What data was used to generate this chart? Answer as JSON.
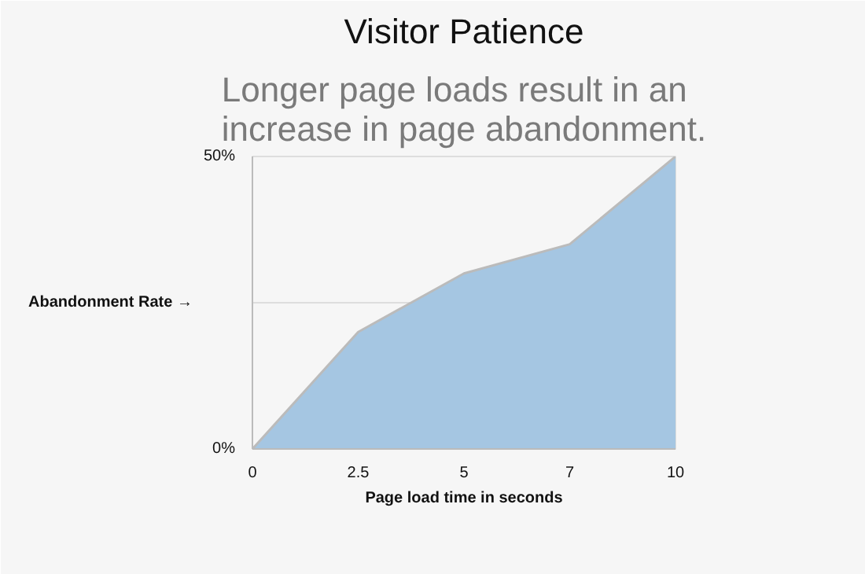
{
  "chart_data": {
    "type": "area",
    "title": "Visitor Patience",
    "subtitle": "Longer page loads result in an increase in page abandonment.",
    "xlabel": "Page load time in seconds",
    "ylabel": "Abandonment Rate →",
    "categories": [
      "0",
      "2.5",
      "5",
      "7",
      "10"
    ],
    "series": [
      {
        "color": "#a5c6e2",
        "values": [
          0,
          20,
          30,
          35,
          50
        ]
      }
    ],
    "ylim": [
      0,
      50
    ],
    "yticks": [
      {
        "value": 0,
        "label": "0%"
      },
      {
        "value": 25,
        "label": null
      },
      {
        "value": 50,
        "label": "50%"
      }
    ],
    "grid": "y"
  }
}
